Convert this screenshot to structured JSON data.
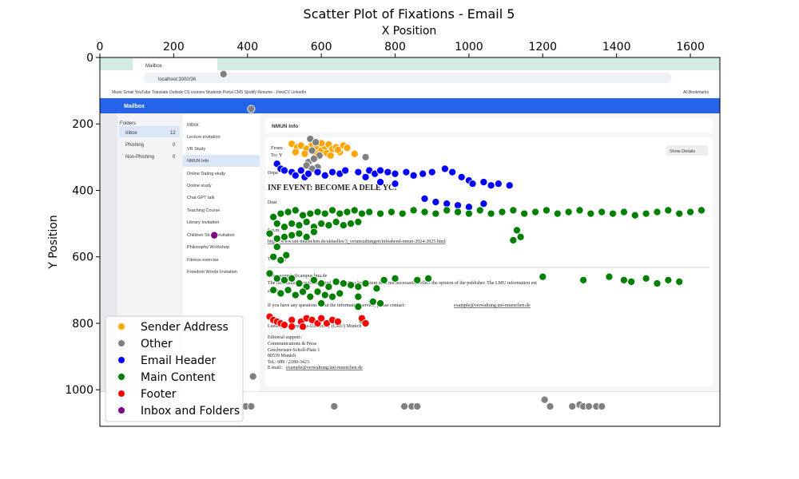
{
  "chart_data": {
    "type": "scatter",
    "title": "Scatter Plot of Fixations - Email 5",
    "xlabel": "X Position",
    "ylabel": "Y Position",
    "xlim": [
      0,
      1680
    ],
    "ylim": [
      1110,
      0
    ],
    "x_ticks": [
      0,
      200,
      400,
      600,
      800,
      1000,
      1200,
      1400,
      1600
    ],
    "y_ticks": [
      0,
      200,
      400,
      600,
      800,
      1000
    ],
    "legend_position": "lower-left",
    "grid": false,
    "series": [
      {
        "name": "Sender Address",
        "color": "#ffa500",
        "points": [
          [
            520,
            260
          ],
          [
            535,
            270
          ],
          [
            545,
            265
          ],
          [
            560,
            275
          ],
          [
            575,
            262
          ],
          [
            590,
            270
          ],
          [
            600,
            280
          ],
          [
            610,
            268
          ],
          [
            620,
            262
          ],
          [
            630,
            275
          ],
          [
            640,
            270
          ],
          [
            650,
            285
          ],
          [
            660,
            265
          ],
          [
            670,
            272
          ],
          [
            555,
            290
          ],
          [
            585,
            290
          ],
          [
            615,
            288
          ],
          [
            645,
            278
          ],
          [
            530,
            285
          ],
          [
            690,
            290
          ],
          [
            600,
            258
          ],
          [
            625,
            295
          ]
        ]
      },
      {
        "name": "Other",
        "color": "#808080",
        "points": [
          [
            335,
            50
          ],
          [
            410,
            155
          ],
          [
            570,
            245
          ],
          [
            585,
            255
          ],
          [
            575,
            280
          ],
          [
            595,
            295
          ],
          [
            565,
            315
          ],
          [
            580,
            305
          ],
          [
            560,
            325
          ],
          [
            590,
            330
          ],
          [
            575,
            335
          ],
          [
            720,
            300
          ],
          [
            415,
            960
          ],
          [
            395,
            1050
          ],
          [
            410,
            1050
          ],
          [
            635,
            1050
          ],
          [
            825,
            1050
          ],
          [
            845,
            1050
          ],
          [
            860,
            1050
          ],
          [
            1205,
            1030
          ],
          [
            1220,
            1050
          ],
          [
            1280,
            1050
          ],
          [
            1300,
            1045
          ],
          [
            1310,
            1050
          ],
          [
            1325,
            1050
          ],
          [
            1345,
            1050
          ],
          [
            1360,
            1050
          ]
        ]
      },
      {
        "name": "Email Header",
        "color": "#0000ff",
        "points": [
          [
            480,
            320
          ],
          [
            490,
            335
          ],
          [
            500,
            340
          ],
          [
            520,
            345
          ],
          [
            530,
            355
          ],
          [
            545,
            340
          ],
          [
            555,
            360
          ],
          [
            565,
            350
          ],
          [
            590,
            345
          ],
          [
            610,
            355
          ],
          [
            630,
            345
          ],
          [
            650,
            350
          ],
          [
            665,
            340
          ],
          [
            700,
            345
          ],
          [
            730,
            340
          ],
          [
            745,
            350
          ],
          [
            760,
            340
          ],
          [
            780,
            345
          ],
          [
            800,
            350
          ],
          [
            830,
            345
          ],
          [
            850,
            355
          ],
          [
            875,
            350
          ],
          [
            900,
            345
          ],
          [
            935,
            335
          ],
          [
            955,
            345
          ],
          [
            980,
            360
          ],
          [
            1000,
            370
          ],
          [
            1010,
            380
          ],
          [
            1040,
            375
          ],
          [
            1060,
            385
          ],
          [
            1080,
            380
          ],
          [
            1110,
            385
          ],
          [
            880,
            425
          ],
          [
            910,
            435
          ],
          [
            940,
            440
          ],
          [
            970,
            445
          ],
          [
            1000,
            450
          ],
          [
            1040,
            440
          ],
          [
            720,
            360
          ],
          [
            760,
            375
          ],
          [
            800,
            380
          ]
        ]
      },
      {
        "name": "Main Content",
        "color": "#008000",
        "points": [
          [
            470,
            480
          ],
          [
            490,
            470
          ],
          [
            510,
            465
          ],
          [
            530,
            460
          ],
          [
            550,
            475
          ],
          [
            570,
            470
          ],
          [
            590,
            465
          ],
          [
            610,
            470
          ],
          [
            630,
            460
          ],
          [
            650,
            470
          ],
          [
            670,
            465
          ],
          [
            690,
            460
          ],
          [
            710,
            470
          ],
          [
            730,
            465
          ],
          [
            760,
            470
          ],
          [
            790,
            465
          ],
          [
            820,
            470
          ],
          [
            850,
            460
          ],
          [
            880,
            465
          ],
          [
            910,
            470
          ],
          [
            940,
            460
          ],
          [
            970,
            465
          ],
          [
            1000,
            470
          ],
          [
            1030,
            460
          ],
          [
            1060,
            470
          ],
          [
            1090,
            465
          ],
          [
            1120,
            460
          ],
          [
            1150,
            470
          ],
          [
            1180,
            465
          ],
          [
            1210,
            460
          ],
          [
            1240,
            470
          ],
          [
            1270,
            465
          ],
          [
            1300,
            460
          ],
          [
            1330,
            470
          ],
          [
            1360,
            465
          ],
          [
            1390,
            470
          ],
          [
            1420,
            465
          ],
          [
            1450,
            475
          ],
          [
            1480,
            470
          ],
          [
            1510,
            465
          ],
          [
            1540,
            460
          ],
          [
            1570,
            470
          ],
          [
            1600,
            465
          ],
          [
            1630,
            460
          ],
          [
            480,
            500
          ],
          [
            500,
            510
          ],
          [
            520,
            500
          ],
          [
            540,
            505
          ],
          [
            560,
            495
          ],
          [
            580,
            510
          ],
          [
            600,
            500
          ],
          [
            620,
            505
          ],
          [
            640,
            495
          ],
          [
            660,
            505
          ],
          [
            680,
            500
          ],
          [
            700,
            495
          ],
          [
            460,
            530
          ],
          [
            480,
            545
          ],
          [
            500,
            540
          ],
          [
            520,
            535
          ],
          [
            540,
            530
          ],
          [
            560,
            540
          ],
          [
            580,
            525
          ],
          [
            1130,
            520
          ],
          [
            1140,
            540
          ],
          [
            1120,
            550
          ],
          [
            480,
            570
          ],
          [
            470,
            600
          ],
          [
            490,
            610
          ],
          [
            505,
            595
          ],
          [
            460,
            650
          ],
          [
            480,
            665
          ],
          [
            500,
            670
          ],
          [
            520,
            665
          ],
          [
            540,
            680
          ],
          [
            560,
            690
          ],
          [
            580,
            670
          ],
          [
            600,
            680
          ],
          [
            620,
            690
          ],
          [
            640,
            675
          ],
          [
            660,
            680
          ],
          [
            680,
            685
          ],
          [
            700,
            690
          ],
          [
            720,
            680
          ],
          [
            750,
            695
          ],
          [
            770,
            670
          ],
          [
            800,
            665
          ],
          [
            470,
            700
          ],
          [
            490,
            710
          ],
          [
            510,
            700
          ],
          [
            530,
            715
          ],
          [
            550,
            705
          ],
          [
            570,
            720
          ],
          [
            590,
            705
          ],
          [
            610,
            715
          ],
          [
            630,
            720
          ],
          [
            650,
            710
          ],
          [
            700,
            720
          ],
          [
            740,
            735
          ],
          [
            760,
            740
          ],
          [
            860,
            670
          ],
          [
            890,
            665
          ],
          [
            1380,
            660
          ],
          [
            1420,
            670
          ],
          [
            1440,
            675
          ],
          [
            1480,
            665
          ],
          [
            1510,
            680
          ],
          [
            1540,
            670
          ],
          [
            1570,
            675
          ],
          [
            1310,
            670
          ],
          [
            1200,
            660
          ],
          [
            600,
            740
          ],
          [
            700,
            750
          ],
          [
            710,
            790
          ]
        ]
      },
      {
        "name": "Footer",
        "color": "#ff0000",
        "points": [
          [
            460,
            780
          ],
          [
            470,
            790
          ],
          [
            480,
            795
          ],
          [
            490,
            800
          ],
          [
            500,
            805
          ],
          [
            520,
            790
          ],
          [
            545,
            795
          ],
          [
            560,
            785
          ],
          [
            575,
            790
          ],
          [
            590,
            800
          ],
          [
            600,
            785
          ],
          [
            615,
            800
          ],
          [
            630,
            790
          ],
          [
            645,
            795
          ],
          [
            520,
            810
          ],
          [
            550,
            810
          ],
          [
            710,
            785
          ],
          [
            720,
            800
          ]
        ]
      },
      {
        "name": "Inbox and Folders",
        "color": "#800080",
        "points": [
          [
            310,
            535
          ]
        ]
      }
    ]
  }
}
